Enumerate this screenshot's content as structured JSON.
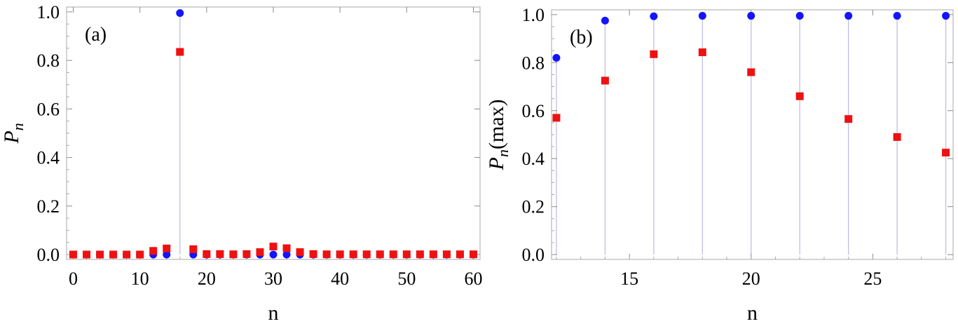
{
  "chart_data": [
    {
      "type": "scatter",
      "panel_label": "(a)",
      "xlabel": "n",
      "ylabel": "P",
      "ylabel_sub": "n",
      "ylabel_suffix": "",
      "xlim": [
        -1,
        61
      ],
      "ylim": [
        -0.02,
        1.02
      ],
      "xticks": [
        0,
        10,
        20,
        30,
        40,
        50,
        60
      ],
      "yticks": [
        0.0,
        0.2,
        0.4,
        0.6,
        0.8,
        1.0
      ],
      "grid": false,
      "legend": "none",
      "x": [
        0,
        2,
        4,
        6,
        8,
        10,
        12,
        14,
        16,
        18,
        20,
        22,
        24,
        26,
        28,
        30,
        32,
        34,
        36,
        38,
        40,
        42,
        44,
        46,
        48,
        50,
        52,
        54,
        56,
        58,
        60
      ],
      "series": [
        {
          "marker": "circle",
          "color": "#1414ff",
          "values": [
            0,
            0,
            0,
            0,
            0,
            0,
            0,
            0,
            0.995,
            0,
            0,
            0,
            0,
            0,
            0,
            0,
            0,
            0,
            0,
            0,
            0,
            0,
            0,
            0,
            0,
            0,
            0,
            0,
            0,
            0,
            0
          ]
        },
        {
          "marker": "square",
          "color": "#ee1111",
          "values": [
            0,
            0,
            0,
            0,
            0,
            0,
            0.015,
            0.025,
            0.835,
            0.022,
            0.002,
            0.002,
            0.001,
            0.002,
            0.01,
            0.033,
            0.026,
            0.01,
            0.002,
            0.001,
            0.001,
            0.001,
            0.001,
            0.001,
            0.001,
            0.001,
            0.001,
            0.001,
            0.001,
            0.001,
            0.001
          ]
        }
      ],
      "stems": {
        "color": "#b8bcdc",
        "x": [
          16
        ]
      }
    },
    {
      "type": "scatter",
      "panel_label": "(b)",
      "xlabel": "n",
      "ylabel": "P",
      "ylabel_sub": "n",
      "ylabel_suffix": "(max)",
      "xlim": [
        11.8,
        28.3
      ],
      "ylim": [
        -0.02,
        1.02
      ],
      "xticks": [
        15,
        20,
        25
      ],
      "yticks": [
        0.0,
        0.2,
        0.4,
        0.6,
        0.8,
        1.0
      ],
      "grid": false,
      "legend": "none",
      "x": [
        12,
        14,
        16,
        18,
        20,
        22,
        24,
        26,
        28
      ],
      "series": [
        {
          "marker": "circle",
          "color": "#1414ff",
          "values": [
            0.82,
            0.975,
            0.993,
            0.995,
            0.995,
            0.995,
            0.995,
            0.995,
            0.995
          ]
        },
        {
          "marker": "square",
          "color": "#ee1111",
          "values": [
            0.57,
            0.725,
            0.835,
            0.843,
            0.76,
            0.66,
            0.565,
            0.49,
            0.425
          ]
        }
      ],
      "stems": {
        "color": "#b8bcdc",
        "x": [
          12,
          14,
          16,
          18,
          20,
          22,
          24,
          26,
          28
        ]
      }
    }
  ]
}
